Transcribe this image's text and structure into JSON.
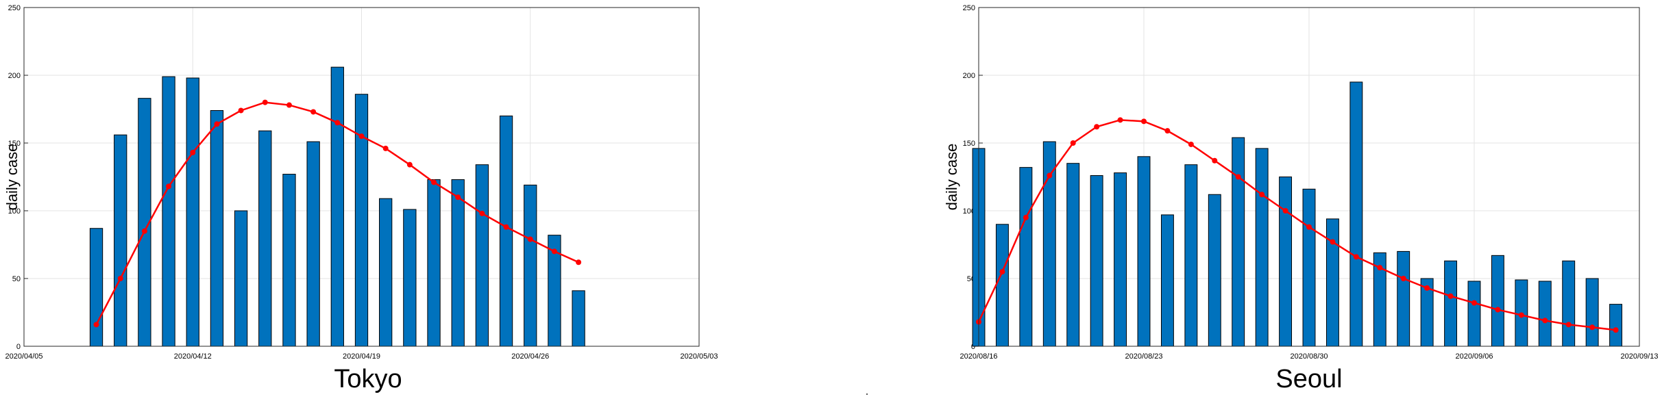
{
  "chart_data": [
    {
      "type": "bar",
      "title": "Tokyo",
      "ylabel": "daily case",
      "ylim": [
        0,
        250
      ],
      "yticks": [
        0,
        50,
        100,
        150,
        200,
        250
      ],
      "xlim": [
        "2020/04/05",
        "2020/05/03"
      ],
      "xticks": [
        "2020/04/05",
        "2020/04/12",
        "2020/04/19",
        "2020/04/26",
        "2020/05/03"
      ],
      "grid": true,
      "series": [
        {
          "style": "bar",
          "color": "#0072bd",
          "x": [
            "2020/04/08",
            "2020/04/09",
            "2020/04/10",
            "2020/04/11",
            "2020/04/12",
            "2020/04/13",
            "2020/04/14",
            "2020/04/15",
            "2020/04/16",
            "2020/04/17",
            "2020/04/18",
            "2020/04/19",
            "2020/04/20",
            "2020/04/21",
            "2020/04/22",
            "2020/04/23",
            "2020/04/24",
            "2020/04/25",
            "2020/04/26",
            "2020/04/27",
            "2020/04/28"
          ],
          "values": [
            87,
            156,
            183,
            199,
            198,
            174,
            100,
            159,
            127,
            151,
            206,
            186,
            109,
            101,
            123,
            123,
            134,
            170,
            119,
            82,
            41
          ]
        },
        {
          "style": "line",
          "color": "#ff0000",
          "x": [
            "2020/04/08",
            "2020/04/09",
            "2020/04/10",
            "2020/04/11",
            "2020/04/12",
            "2020/04/13",
            "2020/04/14",
            "2020/04/15",
            "2020/04/16",
            "2020/04/17",
            "2020/04/18",
            "2020/04/19",
            "2020/04/20",
            "2020/04/21",
            "2020/04/22",
            "2020/04/23",
            "2020/04/24",
            "2020/04/25",
            "2020/04/26",
            "2020/04/27",
            "2020/04/28"
          ],
          "values": [
            16,
            50,
            85,
            118,
            143,
            164,
            174,
            180,
            178,
            173,
            165,
            155,
            146,
            134,
            121,
            110,
            98,
            88,
            79,
            70,
            62
          ]
        }
      ]
    },
    {
      "type": "bar",
      "title": "Seoul",
      "ylabel": "daily case",
      "ylim": [
        0,
        250
      ],
      "yticks": [
        0,
        50,
        100,
        150,
        200,
        250
      ],
      "xlim": [
        "2020/08/16",
        "2020/09/13"
      ],
      "xticks": [
        "2020/08/16",
        "2020/08/23",
        "2020/08/30",
        "2020/09/06",
        "2020/09/13"
      ],
      "grid": true,
      "series": [
        {
          "style": "bar",
          "color": "#0072bd",
          "x": [
            "2020/08/16",
            "2020/08/17",
            "2020/08/18",
            "2020/08/19",
            "2020/08/20",
            "2020/08/21",
            "2020/08/22",
            "2020/08/23",
            "2020/08/24",
            "2020/08/25",
            "2020/08/26",
            "2020/08/27",
            "2020/08/28",
            "2020/08/29",
            "2020/08/30",
            "2020/08/31",
            "2020/09/01",
            "2020/09/02",
            "2020/09/03",
            "2020/09/04",
            "2020/09/05",
            "2020/09/06",
            "2020/09/07",
            "2020/09/08",
            "2020/09/09",
            "2020/09/10",
            "2020/09/11",
            "2020/09/12"
          ],
          "values": [
            146,
            90,
            132,
            151,
            135,
            126,
            128,
            140,
            97,
            134,
            112,
            154,
            146,
            125,
            116,
            94,
            195,
            69,
            70,
            50,
            63,
            48,
            67,
            49,
            48,
            63,
            50,
            31
          ]
        },
        {
          "style": "line",
          "color": "#ff0000",
          "x": [
            "2020/08/16",
            "2020/08/17",
            "2020/08/18",
            "2020/08/19",
            "2020/08/20",
            "2020/08/21",
            "2020/08/22",
            "2020/08/23",
            "2020/08/24",
            "2020/08/25",
            "2020/08/26",
            "2020/08/27",
            "2020/08/28",
            "2020/08/29",
            "2020/08/30",
            "2020/08/31",
            "2020/09/01",
            "2020/09/02",
            "2020/09/03",
            "2020/09/04",
            "2020/09/05",
            "2020/09/06",
            "2020/09/07",
            "2020/09/08",
            "2020/09/09",
            "2020/09/10",
            "2020/09/11",
            "2020/09/12"
          ],
          "values": [
            18,
            55,
            95,
            126,
            150,
            162,
            167,
            166,
            159,
            149,
            137,
            125,
            112,
            100,
            88,
            77,
            66,
            58,
            50,
            43,
            37,
            32,
            27,
            23,
            19,
            16,
            14,
            12
          ]
        }
      ]
    }
  ]
}
